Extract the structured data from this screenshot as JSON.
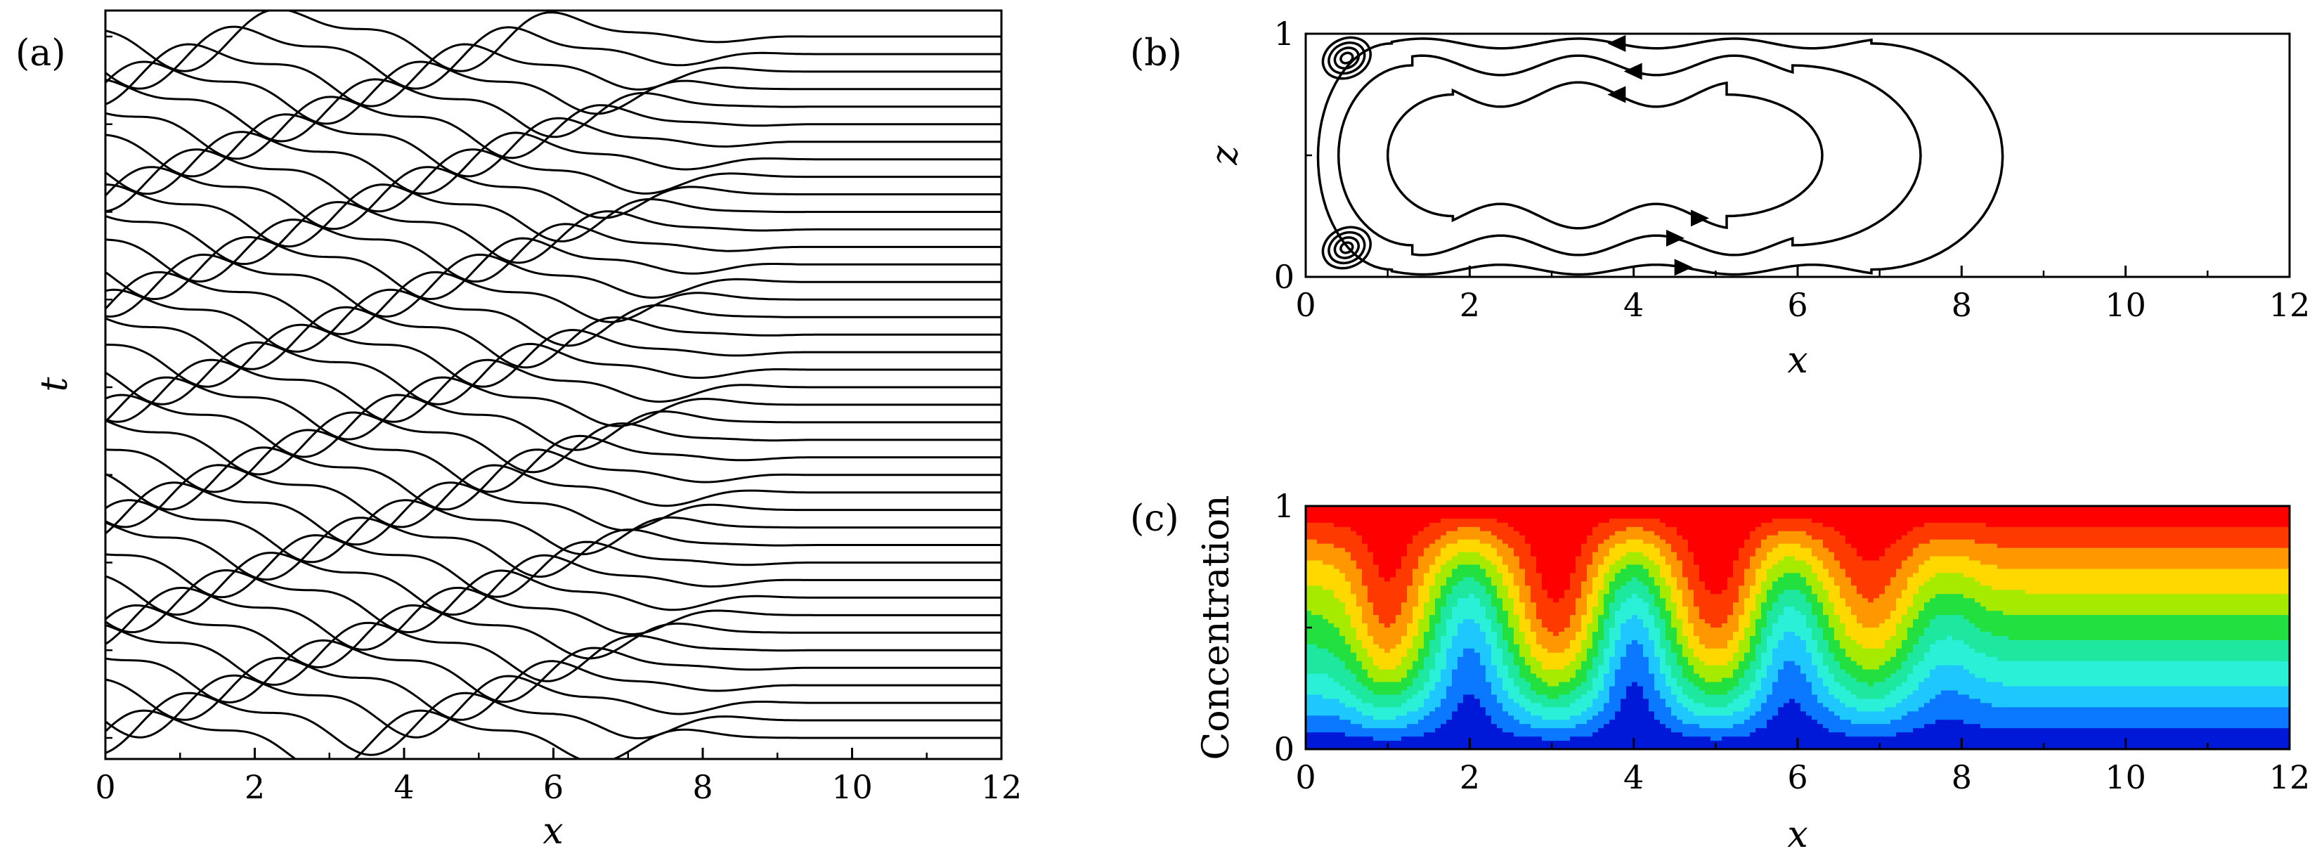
{
  "chart_data": [
    {
      "id": "a",
      "panel_label": "(a)",
      "type": "line",
      "style": "waterfall",
      "xlabel": "x",
      "ylabel": "t",
      "xlim": [
        0,
        12
      ],
      "xticks": [
        "0",
        "2",
        "4",
        "6",
        "8",
        "10",
        "12"
      ],
      "trace_count": 41,
      "wave": {
        "amplitude": 0.55,
        "wavelength": 3.7,
        "speed": 0.6,
        "envelope_start": 5.0,
        "envelope_end": 9.5
      },
      "line_color": "#000000"
    },
    {
      "id": "b",
      "panel_label": "(b)",
      "type": "line",
      "style": "streamlines",
      "xlabel": "x",
      "ylabel": "z",
      "xlim": [
        0,
        12
      ],
      "ylim": [
        0,
        1
      ],
      "xticks": [
        "0",
        "2",
        "4",
        "6",
        "8",
        "10",
        "12"
      ],
      "yticks": [
        "0",
        "1"
      ],
      "streamlines": [
        {
          "name": "outer",
          "x_left": 0.15,
          "x_right": 8.5,
          "z_bottom": 0.03,
          "z_top": 0.96,
          "wobble": 0.02,
          "arrows": [
            3.8,
            4.6
          ]
        },
        {
          "name": "middle",
          "x_left": 0.4,
          "x_right": 7.5,
          "z_bottom": 0.13,
          "z_top": 0.87,
          "wobble": 0.04,
          "arrows": [
            4.0,
            4.5
          ]
        },
        {
          "name": "inner",
          "x_left": 1.0,
          "x_right": 6.3,
          "z_bottom": 0.25,
          "z_top": 0.75,
          "wobble": 0.05,
          "arrows": [
            3.8,
            4.8
          ]
        }
      ],
      "vortices": [
        {
          "x": 0.5,
          "z": 0.9,
          "rx": 0.3,
          "rz": 0.08
        },
        {
          "x": 0.5,
          "z": 0.12,
          "rx": 0.3,
          "rz": 0.08
        }
      ],
      "line_color": "#000000"
    },
    {
      "id": "c",
      "panel_label": "(c)",
      "type": "heatmap",
      "style": "filled-contour",
      "xlabel": "x",
      "ylabel": "Concentration",
      "xlim": [
        0,
        12
      ],
      "ylim": [
        0,
        1
      ],
      "xticks": [
        "0",
        "2",
        "4",
        "6",
        "8",
        "10",
        "12"
      ],
      "yticks": [
        "0",
        "1"
      ],
      "levels": 10,
      "fingers": [
        {
          "x": 1.0,
          "width": 0.45,
          "amplitude": 0.35
        },
        {
          "x": 2.0,
          "width": 0.4,
          "amplitude": -0.3
        },
        {
          "x": 3.05,
          "width": 0.5,
          "amplitude": 0.38
        },
        {
          "x": 4.0,
          "width": 0.4,
          "amplitude": -0.32
        },
        {
          "x": 5.0,
          "width": 0.5,
          "amplitude": 0.36
        },
        {
          "x": 5.9,
          "width": 0.4,
          "amplitude": -0.26
        },
        {
          "x": 6.9,
          "width": 0.5,
          "amplitude": 0.26
        },
        {
          "x": 7.8,
          "width": 0.45,
          "amplitude": -0.12
        }
      ],
      "colorscale": [
        "#0018d8",
        "#0a78ff",
        "#1ec8ff",
        "#2af0d8",
        "#1ee8a0",
        "#22e040",
        "#a6ea00",
        "#ffd800",
        "#ff9800",
        "#ff3a00",
        "#ff0000"
      ]
    }
  ]
}
